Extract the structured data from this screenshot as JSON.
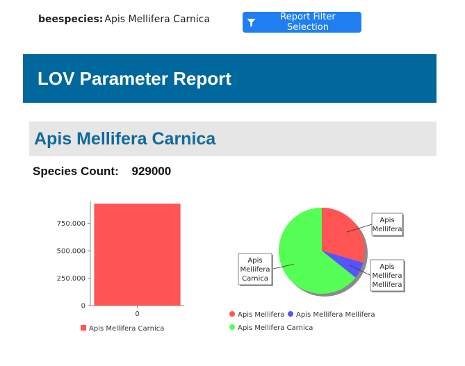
{
  "filter": {
    "key": "beespecies:",
    "value": "Apis Mellifera Carnica",
    "button_label": "Report Filter Selection",
    "button_icon": "filter-icon"
  },
  "report": {
    "title": "LOV Parameter Report"
  },
  "section": {
    "title": "Apis Mellifera Carnica",
    "count_label": "Species Count:",
    "count_value": "929000"
  },
  "chart_data": [
    {
      "type": "bar",
      "categories": [
        "0"
      ],
      "series": [
        {
          "name": "Apis Mellifera Carnica",
          "values": [
            929000
          ],
          "color": "#ff5555"
        }
      ],
      "ylim": [
        0,
        950000
      ],
      "yticks": [
        "0",
        "250.000",
        "500.000",
        "750.000"
      ],
      "ytick_values": [
        0,
        250000,
        500000,
        750000
      ],
      "legend": "bottom"
    },
    {
      "type": "pie",
      "slices": [
        {
          "label": "Apis Mellifera",
          "callout": [
            "Apis",
            "Mellifera"
          ],
          "fraction": 0.295,
          "color": "#ff5555"
        },
        {
          "label": "Apis Mellifera Mellifera",
          "callout": [
            "Apis",
            "Mellifera",
            "Mellifera"
          ],
          "fraction": 0.062,
          "color": "#5555ff"
        },
        {
          "label": "Apis Mellifera Carnica",
          "callout": [
            "Apis",
            "Mellifera",
            "Carnica"
          ],
          "fraction": 0.643,
          "color": "#55ff55"
        }
      ],
      "legend": "bottom"
    }
  ]
}
